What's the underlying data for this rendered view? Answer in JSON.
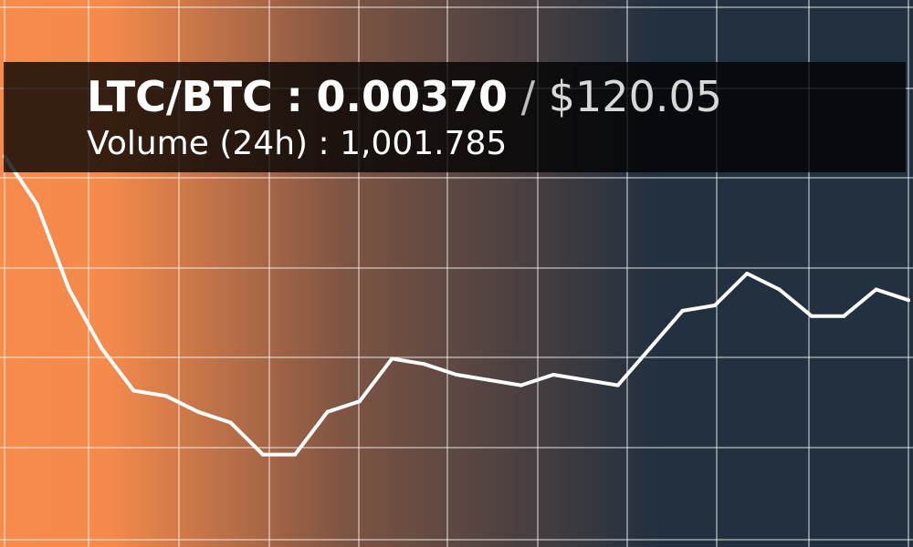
{
  "ticker": {
    "pair": "LTC/BTC",
    "separator": ":",
    "price_btc": "0.00370",
    "slash": "/",
    "price_usd": "$120.05",
    "volume_label": "Volume (24h)",
    "volume_separator": ":",
    "volume_value": "1,001.785"
  },
  "colors": {
    "gradient_start": "#f68b4c",
    "gradient_mid": "#7d5443",
    "gradient_end": "#22303f",
    "line": "#ffffff",
    "grid": "#ffffff"
  },
  "chart_data": {
    "type": "line",
    "title": "",
    "xlabel": "",
    "ylabel": "",
    "grid": true,
    "ylim": [
      0,
      100
    ],
    "series": [
      {
        "values": [
          72,
          63,
          47,
          36,
          28,
          27,
          24,
          22,
          16,
          16,
          24,
          26,
          34,
          33,
          31,
          30,
          29,
          31,
          30,
          29,
          36,
          43,
          44,
          50,
          47,
          42,
          42,
          47,
          45
        ]
      }
    ]
  }
}
